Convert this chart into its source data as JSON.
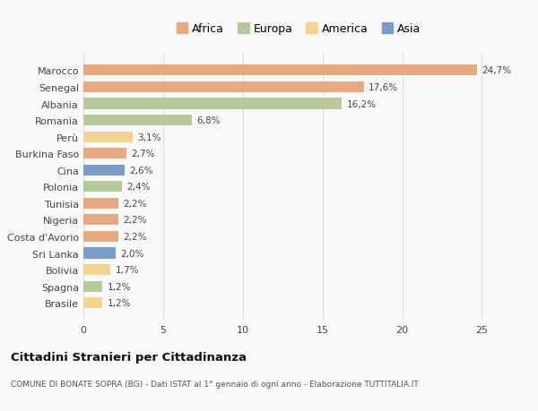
{
  "countries": [
    "Brasile",
    "Spagna",
    "Bolivia",
    "Sri Lanka",
    "Costa d'Avorio",
    "Nigeria",
    "Tunisia",
    "Polonia",
    "Cina",
    "Burkina Faso",
    "Perù",
    "Romania",
    "Albania",
    "Senegal",
    "Marocco"
  ],
  "values": [
    1.2,
    1.2,
    1.7,
    2.0,
    2.2,
    2.2,
    2.2,
    2.4,
    2.6,
    2.7,
    3.1,
    6.8,
    16.2,
    17.6,
    24.7
  ],
  "labels": [
    "1,2%",
    "1,2%",
    "1,7%",
    "2,0%",
    "2,2%",
    "2,2%",
    "2,2%",
    "2,4%",
    "2,6%",
    "2,7%",
    "3,1%",
    "6,8%",
    "16,2%",
    "17,6%",
    "24,7%"
  ],
  "continents": [
    "America",
    "Europa",
    "America",
    "Asia",
    "Africa",
    "Africa",
    "Africa",
    "Europa",
    "Asia",
    "Africa",
    "America",
    "Europa",
    "Europa",
    "Africa",
    "Africa"
  ],
  "colors": {
    "Africa": "#E8A882",
    "Europa": "#B5C99A",
    "America": "#F2D48F",
    "Asia": "#7B9DC9"
  },
  "legend_order": [
    "Africa",
    "Europa",
    "America",
    "Asia"
  ],
  "title": "Cittadini Stranieri per Cittadinanza",
  "subtitle": "COMUNE DI BONATE SOPRA (BG) - Dati ISTAT al 1° gennaio di ogni anno - Elaborazione TUTTITALIA.IT",
  "xlim": [
    0,
    27
  ],
  "xticks": [
    0,
    5,
    10,
    15,
    20,
    25
  ],
  "bg_color": "#f9f9f9",
  "grid_color": "#dddddd"
}
